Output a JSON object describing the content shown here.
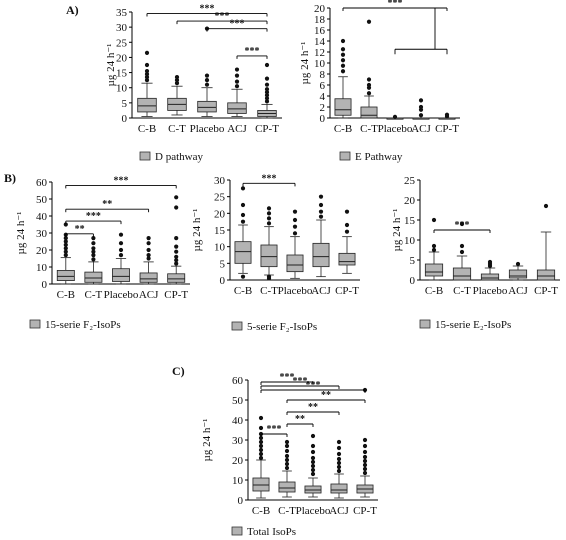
{
  "panel_labels": {
    "A": "A)",
    "B": "B)",
    "C": "C)"
  },
  "categories": [
    "C-B",
    "C-T",
    "Placebo",
    "ACJ",
    "CP-T"
  ],
  "chart_data": [
    {
      "type": "box",
      "panel": "A)",
      "ylabel": "µg 24 h⁻¹",
      "legend": "D pathway",
      "ylim": [
        0,
        35
      ],
      "yticks": [
        0,
        5,
        10,
        15,
        20,
        25,
        30,
        35
      ],
      "categories": [
        "C-B",
        "C-T",
        "Placebo",
        "ACJ",
        "CP-T"
      ],
      "boxes": [
        {
          "min": 0.5,
          "q1": 2.0,
          "median": 4.0,
          "q3": 6.5,
          "max": 11.5
        },
        {
          "min": 1.0,
          "q1": 2.5,
          "median": 4.5,
          "q3": 6.5,
          "max": 10.5
        },
        {
          "min": 0.5,
          "q1": 2.0,
          "median": 3.5,
          "q3": 5.5,
          "max": 10.0
        },
        {
          "min": 0.5,
          "q1": 1.5,
          "median": 3.0,
          "q3": 5.0,
          "max": 9.5
        },
        {
          "min": 0.0,
          "q1": 0.5,
          "median": 1.5,
          "q3": 2.5,
          "max": 4.5
        }
      ],
      "outliers": [
        [
          12.5,
          13.5,
          14.5,
          15.5,
          17.5,
          21.5
        ],
        [
          11.5,
          12.5,
          13.5
        ],
        [
          11.0,
          12.5,
          14.0,
          29.5
        ],
        [
          10.5,
          12.0,
          14.0,
          16.0
        ],
        [
          5.5,
          6.5,
          7.5,
          8.5,
          9.5,
          11.0,
          13.0,
          17.5
        ]
      ],
      "significance": [
        {
          "from": 0,
          "to": 4,
          "y": 34.5,
          "label": "***"
        },
        {
          "from": 1,
          "to": 4,
          "y": 32.0,
          "label": "***"
        },
        {
          "from": 2,
          "to": 4,
          "y": 29.5,
          "label": "***"
        },
        {
          "from": 3,
          "to": 4,
          "y": 20.5,
          "label": "***"
        }
      ]
    },
    {
      "type": "box",
      "panel": "A)",
      "ylabel": "µg 24 h⁻¹",
      "legend": "E Pathway",
      "ylim": [
        0,
        20
      ],
      "yticks": [
        0,
        2,
        4,
        6,
        8,
        10,
        12,
        14,
        16,
        18,
        20
      ],
      "categories": [
        "C-B",
        "C-T",
        "Placebo",
        "ACJ",
        "CP-T"
      ],
      "boxes": [
        {
          "min": 0.0,
          "q1": 0.5,
          "median": 1.5,
          "q3": 3.5,
          "max": 7.5
        },
        {
          "min": 0.0,
          "q1": 0.0,
          "median": 0.5,
          "q3": 2.0,
          "max": 4.0
        },
        {
          "min": 0.0,
          "q1": 0.0,
          "median": 0.0,
          "q3": 0.0,
          "max": 0.0
        },
        {
          "min": 0.0,
          "q1": 0.0,
          "median": 0.0,
          "q3": 0.0,
          "max": 0.0
        },
        {
          "min": 0.0,
          "q1": 0.0,
          "median": 0.0,
          "q3": 0.0,
          "max": 0.0
        }
      ],
      "outliers": [
        [
          8.5,
          9.5,
          10.5,
          11.5,
          12.5,
          14.0
        ],
        [
          4.5,
          5.5,
          6.0,
          7.0,
          17.5
        ],
        [
          0.2
        ],
        [
          0.5,
          1.5,
          2.0,
          3.2
        ],
        [
          0.3,
          0.6
        ]
      ],
      "significance": [
        {
          "from": 0,
          "to": 4,
          "y": 20.0,
          "label": "***"
        }
      ],
      "bracket_drop": {
        "x_from": 2,
        "x_to": 4,
        "y": 12.5
      }
    },
    {
      "type": "box",
      "panel": "B)",
      "ylabel": "µg 24 h⁻¹",
      "legend": "15-serie  F₂-IsoPs",
      "ylim": [
        0,
        60
      ],
      "yticks": [
        0,
        10,
        20,
        30,
        40,
        50,
        60
      ],
      "categories": [
        "C-B",
        "C-T",
        "Placebo",
        "ACJ",
        "CP-T"
      ],
      "boxes": [
        {
          "min": 0.0,
          "q1": 2.0,
          "median": 4.5,
          "q3": 8.0,
          "max": 15.5
        },
        {
          "min": 0.0,
          "q1": 1.0,
          "median": 3.5,
          "q3": 7.0,
          "max": 13.0
        },
        {
          "min": 0.0,
          "q1": 1.5,
          "median": 4.5,
          "q3": 9.0,
          "max": 15.0
        },
        {
          "min": 0.0,
          "q1": 1.0,
          "median": 3.0,
          "q3": 6.5,
          "max": 13.0
        },
        {
          "min": 0.0,
          "q1": 1.0,
          "median": 3.0,
          "q3": 6.0,
          "max": 10.5
        }
      ],
      "outliers": [
        [
          17.0,
          19.0,
          21.0,
          23.0,
          25.0,
          27.0,
          29.0,
          35.0
        ],
        [
          14.5,
          17.0,
          19.0,
          21.0,
          24.0,
          27.0
        ],
        [
          17.0,
          20.0,
          24.0,
          29.0
        ],
        [
          15.0,
          17.0,
          20.0,
          24.0,
          27.0
        ],
        [
          12.0,
          14.0,
          16.0,
          19.0,
          22.0,
          27.0,
          45.0,
          51.0
        ]
      ],
      "significance": [
        {
          "from": 0,
          "to": 4,
          "y": 58.0,
          "label": "***"
        },
        {
          "from": 0,
          "to": 3,
          "y": 44.0,
          "label": "**"
        },
        {
          "from": 0,
          "to": 2,
          "y": 37.0,
          "label": "***"
        },
        {
          "from": 0,
          "to": 1,
          "y": 29.5,
          "label": "**"
        }
      ]
    },
    {
      "type": "box",
      "panel": "B)",
      "ylabel": "µg 24 h⁻¹",
      "legend": "5-serie   F₂-IsoPs",
      "ylim": [
        0,
        30
      ],
      "yticks": [
        0,
        5,
        10,
        15,
        20,
        25,
        30
      ],
      "categories": [
        "C-B",
        "C-T",
        "Placebo",
        "ACJ",
        "CP-T"
      ],
      "boxes": [
        {
          "min": 2.0,
          "q1": 5.0,
          "median": 8.5,
          "q3": 11.5,
          "max": 16.5
        },
        {
          "min": 1.5,
          "q1": 4.0,
          "median": 7.0,
          "q3": 10.5,
          "max": 16.0
        },
        {
          "min": 0.5,
          "q1": 2.5,
          "median": 4.5,
          "q3": 7.5,
          "max": 13.0
        },
        {
          "min": 1.0,
          "q1": 4.0,
          "median": 7.0,
          "q3": 11.0,
          "max": 18.0
        },
        {
          "min": 2.0,
          "q1": 4.5,
          "median": 5.5,
          "q3": 8.0,
          "max": 13.0
        }
      ],
      "outliers": [
        [
          1.0,
          17.5,
          19.5,
          22.5,
          27.5
        ],
        [
          0.5,
          1.0,
          17.0,
          18.5,
          20.0,
          21.5
        ],
        [
          14.0,
          16.0,
          18.0,
          20.5
        ],
        [
          19.0,
          20.5,
          22.5,
          25.0
        ],
        [
          14.5,
          16.5,
          20.5
        ]
      ],
      "significance": [
        {
          "from": 0,
          "to": 2,
          "y": 29.0,
          "label": "***"
        }
      ]
    },
    {
      "type": "box",
      "panel": "B)",
      "ylabel": "µg 24 h⁻¹",
      "legend": "15-serie  E₂-IsoPs",
      "ylim": [
        0,
        25
      ],
      "yticks": [
        0,
        5,
        10,
        15,
        20,
        25
      ],
      "categories": [
        "C-B",
        "C-T",
        "Placebo",
        "ACJ",
        "CP-T"
      ],
      "boxes": [
        {
          "min": 0.0,
          "q1": 1.0,
          "median": 2.0,
          "q3": 4.0,
          "max": 7.0
        },
        {
          "min": 0.0,
          "q1": 0.0,
          "median": 1.0,
          "q3": 3.0,
          "max": 6.0
        },
        {
          "min": 0.0,
          "q1": 0.0,
          "median": 0.5,
          "q3": 1.5,
          "max": 3.0
        },
        {
          "min": 0.0,
          "q1": 0.5,
          "median": 1.0,
          "q3": 2.5,
          "max": 3.5
        },
        {
          "min": 0.0,
          "q1": 0.0,
          "median": 1.0,
          "q3": 2.5,
          "max": 12.0
        }
      ],
      "outliers": [
        [
          7.5,
          8.5,
          15.0
        ],
        [
          7.0,
          8.5,
          14.0
        ],
        [
          3.5,
          4.0,
          4.5
        ],
        [
          4.0
        ],
        [
          18.5
        ]
      ],
      "significance": [
        {
          "from": 0,
          "to": 2,
          "y": 12.5,
          "label": "***"
        }
      ]
    },
    {
      "type": "box",
      "panel": "C)",
      "ylabel": "µg 24 h⁻¹",
      "legend": "Total IsoPs",
      "ylim": [
        0,
        60
      ],
      "yticks": [
        0,
        10,
        20,
        30,
        40,
        50,
        60
      ],
      "categories": [
        "C-B",
        "C-T",
        "Placebo",
        "ACJ",
        "CP-T"
      ],
      "boxes": [
        {
          "min": 1.0,
          "q1": 4.5,
          "median": 7.5,
          "q3": 11.0,
          "max": 20.0
        },
        {
          "min": 1.5,
          "q1": 4.0,
          "median": 6.0,
          "q3": 9.0,
          "max": 14.5
        },
        {
          "min": 1.5,
          "q1": 3.5,
          "median": 5.0,
          "q3": 7.0,
          "max": 11.0
        },
        {
          "min": 1.0,
          "q1": 3.5,
          "median": 5.0,
          "q3": 8.0,
          "max": 13.0
        },
        {
          "min": 1.5,
          "q1": 3.5,
          "median": 5.5,
          "q3": 7.5,
          "max": 12.0
        }
      ],
      "outliers": [
        [
          21.0,
          23.0,
          25.0,
          27.0,
          29.0,
          31.0,
          33.0,
          36.0,
          41.0
        ],
        [
          16.0,
          18.0,
          20.0,
          22.0,
          24.5,
          27.0,
          29.0
        ],
        [
          13.0,
          15.0,
          17.0,
          19.0,
          21.0,
          24.0,
          27.0,
          32.0
        ],
        [
          14.5,
          16.5,
          18.5,
          20.5,
          23.0,
          26.0,
          29.0
        ],
        [
          13.5,
          15.5,
          17.5,
          19.5,
          21.5,
          24.0,
          27.0,
          30.0,
          55.0
        ]
      ],
      "significance": [
        {
          "from": 0,
          "to": 2,
          "y": 59.0,
          "label": "***"
        },
        {
          "from": 0,
          "to": 3,
          "y": 57.0,
          "label": "***"
        },
        {
          "from": 0,
          "to": 4,
          "y": 55.0,
          "label": "***"
        },
        {
          "from": 1,
          "to": 4,
          "y": 50.0,
          "label": "**"
        },
        {
          "from": 1,
          "to": 3,
          "y": 44.0,
          "label": "**"
        },
        {
          "from": 1,
          "to": 2,
          "y": 38.0,
          "label": "**"
        },
        {
          "from": 0,
          "to": 1,
          "y": 33.0,
          "label": "***"
        }
      ]
    }
  ]
}
